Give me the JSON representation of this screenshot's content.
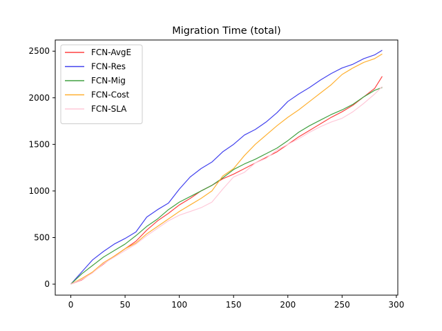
{
  "chart_data": {
    "type": "line",
    "title": "Migration Time (total)",
    "xlabel": "",
    "ylabel": "",
    "xlim": [
      -14.35,
      301.35
    ],
    "ylim": [
      -118,
      2620
    ],
    "xticks": [
      0,
      50,
      100,
      150,
      200,
      250,
      300
    ],
    "xtick_labels": [
      "0",
      "50",
      "100",
      "150",
      "200",
      "250",
      "300"
    ],
    "yticks": [
      0,
      500,
      1000,
      1500,
      2000,
      2500
    ],
    "ytick_labels": [
      "0",
      "500",
      "1000",
      "1500",
      "2000",
      "2500"
    ],
    "grid": false,
    "legend_position": "top-left",
    "series": [
      {
        "name": "FCN-AvgE",
        "color": "#ff4040",
        "points": [
          [
            0,
            0
          ],
          [
            10,
            45
          ],
          [
            20,
            125
          ],
          [
            30,
            215
          ],
          [
            40,
            300
          ],
          [
            50,
            380
          ],
          [
            60,
            460
          ],
          [
            70,
            580
          ],
          [
            80,
            680
          ],
          [
            90,
            760
          ],
          [
            100,
            850
          ],
          [
            110,
            920
          ],
          [
            120,
            1000
          ],
          [
            130,
            1060
          ],
          [
            140,
            1130
          ],
          [
            150,
            1180
          ],
          [
            160,
            1240
          ],
          [
            170,
            1300
          ],
          [
            180,
            1360
          ],
          [
            190,
            1420
          ],
          [
            200,
            1500
          ],
          [
            210,
            1580
          ],
          [
            220,
            1650
          ],
          [
            230,
            1720
          ],
          [
            240,
            1790
          ],
          [
            250,
            1850
          ],
          [
            260,
            1920
          ],
          [
            270,
            2010
          ],
          [
            280,
            2100
          ],
          [
            287,
            2230
          ]
        ]
      },
      {
        "name": "FCN-Res",
        "color": "#4040ee",
        "points": [
          [
            0,
            0
          ],
          [
            10,
            130
          ],
          [
            20,
            260
          ],
          [
            30,
            350
          ],
          [
            40,
            430
          ],
          [
            50,
            490
          ],
          [
            60,
            560
          ],
          [
            70,
            720
          ],
          [
            80,
            800
          ],
          [
            90,
            870
          ],
          [
            100,
            1020
          ],
          [
            110,
            1150
          ],
          [
            120,
            1240
          ],
          [
            130,
            1310
          ],
          [
            140,
            1420
          ],
          [
            150,
            1500
          ],
          [
            160,
            1600
          ],
          [
            170,
            1660
          ],
          [
            180,
            1740
          ],
          [
            190,
            1840
          ],
          [
            200,
            1960
          ],
          [
            210,
            2040
          ],
          [
            220,
            2110
          ],
          [
            230,
            2190
          ],
          [
            240,
            2260
          ],
          [
            250,
            2320
          ],
          [
            260,
            2360
          ],
          [
            270,
            2420
          ],
          [
            280,
            2460
          ],
          [
            287,
            2510
          ]
        ]
      },
      {
        "name": "FCN-Mig",
        "color": "#40a040",
        "points": [
          [
            0,
            0
          ],
          [
            10,
            110
          ],
          [
            20,
            200
          ],
          [
            30,
            290
          ],
          [
            40,
            360
          ],
          [
            50,
            430
          ],
          [
            60,
            520
          ],
          [
            70,
            620
          ],
          [
            80,
            700
          ],
          [
            90,
            800
          ],
          [
            100,
            880
          ],
          [
            110,
            940
          ],
          [
            120,
            1000
          ],
          [
            130,
            1060
          ],
          [
            140,
            1140
          ],
          [
            150,
            1230
          ],
          [
            160,
            1290
          ],
          [
            170,
            1340
          ],
          [
            180,
            1400
          ],
          [
            190,
            1460
          ],
          [
            200,
            1540
          ],
          [
            210,
            1630
          ],
          [
            220,
            1700
          ],
          [
            230,
            1760
          ],
          [
            240,
            1820
          ],
          [
            250,
            1870
          ],
          [
            260,
            1930
          ],
          [
            270,
            2010
          ],
          [
            280,
            2080
          ],
          [
            287,
            2110
          ]
        ]
      },
      {
        "name": "FCN-Cost",
        "color": "#ffb030",
        "points": [
          [
            0,
            0
          ],
          [
            10,
            60
          ],
          [
            20,
            130
          ],
          [
            30,
            230
          ],
          [
            40,
            300
          ],
          [
            50,
            380
          ],
          [
            60,
            440
          ],
          [
            70,
            540
          ],
          [
            80,
            620
          ],
          [
            90,
            700
          ],
          [
            100,
            780
          ],
          [
            110,
            850
          ],
          [
            120,
            920
          ],
          [
            130,
            1000
          ],
          [
            140,
            1160
          ],
          [
            150,
            1240
          ],
          [
            160,
            1380
          ],
          [
            170,
            1500
          ],
          [
            180,
            1600
          ],
          [
            190,
            1700
          ],
          [
            200,
            1790
          ],
          [
            210,
            1870
          ],
          [
            220,
            1960
          ],
          [
            230,
            2050
          ],
          [
            240,
            2140
          ],
          [
            250,
            2250
          ],
          [
            260,
            2320
          ],
          [
            270,
            2380
          ],
          [
            280,
            2420
          ],
          [
            287,
            2470
          ]
        ]
      },
      {
        "name": "FCN-SLA",
        "color": "#ffc8d8",
        "points": [
          [
            0,
            0
          ],
          [
            10,
            50
          ],
          [
            20,
            120
          ],
          [
            30,
            220
          ],
          [
            40,
            290
          ],
          [
            50,
            360
          ],
          [
            60,
            430
          ],
          [
            70,
            520
          ],
          [
            80,
            600
          ],
          [
            90,
            680
          ],
          [
            100,
            740
          ],
          [
            110,
            780
          ],
          [
            120,
            820
          ],
          [
            130,
            880
          ],
          [
            140,
            1020
          ],
          [
            150,
            1150
          ],
          [
            160,
            1200
          ],
          [
            170,
            1300
          ],
          [
            180,
            1350
          ],
          [
            190,
            1440
          ],
          [
            200,
            1500
          ],
          [
            210,
            1560
          ],
          [
            220,
            1630
          ],
          [
            230,
            1690
          ],
          [
            240,
            1740
          ],
          [
            250,
            1780
          ],
          [
            260,
            1850
          ],
          [
            270,
            1940
          ],
          [
            280,
            2040
          ],
          [
            287,
            2120
          ]
        ]
      }
    ]
  }
}
